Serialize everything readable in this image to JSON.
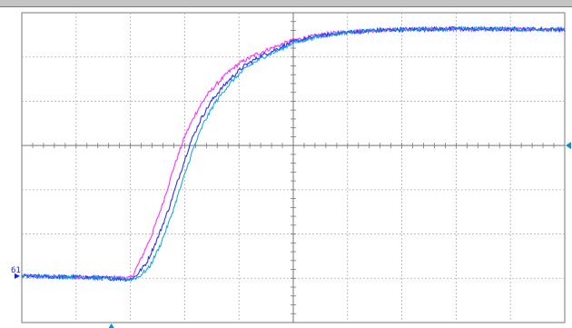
{
  "colors": {
    "grid": "#b0b0b0",
    "axis": "#777777",
    "trace_magenta": "#ff1aff",
    "trace_blue": "#1a1aff",
    "trace_cyan": "#00a0e0",
    "marker": "#0090e0"
  },
  "scope": {
    "channel_marker": "61",
    "trigger_marker_icon": "trigger-level-icon",
    "trigger_position_icon": "trigger-position-icon"
  },
  "chart_data": {
    "type": "line",
    "title": "",
    "xlabel": "",
    "ylabel": "",
    "grid": true,
    "x_divisions": 10,
    "y_divisions": 7,
    "xlim": [
      0,
      10
    ],
    "ylim": [
      -4,
      3
    ],
    "series": [
      {
        "name": "",
        "color": "#ff1aff",
        "x": [
          0,
          1,
          2,
          2.05,
          2.2,
          2.4,
          2.6,
          2.8,
          3,
          3.2,
          3.4,
          3.6,
          3.8,
          4,
          4.3,
          4.6,
          5,
          5.5,
          6,
          6.5,
          7,
          7.5,
          8,
          8.5,
          9,
          9.5,
          10
        ],
        "y": [
          -2.95,
          -2.97,
          -3.0,
          -2.92,
          -2.55,
          -2.0,
          -1.3,
          -0.5,
          0.2,
          0.72,
          1.12,
          1.4,
          1.65,
          1.85,
          2.05,
          2.2,
          2.38,
          2.5,
          2.57,
          2.6,
          2.62,
          2.63,
          2.63,
          2.63,
          2.63,
          2.62,
          2.62
        ]
      },
      {
        "name": "",
        "color": "#1a1aff",
        "x": [
          0,
          1,
          2,
          2.1,
          2.3,
          2.5,
          2.7,
          2.9,
          3.1,
          3.3,
          3.5,
          3.7,
          3.9,
          4.1,
          4.4,
          4.7,
          5,
          5.5,
          6,
          6.5,
          7,
          7.5,
          8,
          8.5,
          9,
          9.5,
          10
        ],
        "y": [
          -2.95,
          -2.97,
          -3.02,
          -2.95,
          -2.65,
          -2.1,
          -1.45,
          -0.7,
          0.05,
          0.6,
          1.02,
          1.32,
          1.58,
          1.8,
          2.02,
          2.18,
          2.34,
          2.48,
          2.56,
          2.6,
          2.62,
          2.63,
          2.64,
          2.63,
          2.63,
          2.63,
          2.62
        ]
      },
      {
        "name": "",
        "color": "#00a0e0",
        "x": [
          0,
          1,
          2,
          2.15,
          2.35,
          2.55,
          2.75,
          2.95,
          3.15,
          3.35,
          3.55,
          3.75,
          3.95,
          4.15,
          4.45,
          4.75,
          5,
          5.5,
          6,
          6.5,
          7,
          7.5,
          8,
          8.5,
          9,
          9.5,
          10
        ],
        "y": [
          -2.95,
          -2.97,
          -3.03,
          -2.97,
          -2.75,
          -2.25,
          -1.6,
          -0.85,
          -0.1,
          0.5,
          0.95,
          1.28,
          1.55,
          1.77,
          2.0,
          2.16,
          2.32,
          2.47,
          2.56,
          2.6,
          2.62,
          2.63,
          2.63,
          2.64,
          2.63,
          2.63,
          2.62
        ]
      }
    ]
  }
}
